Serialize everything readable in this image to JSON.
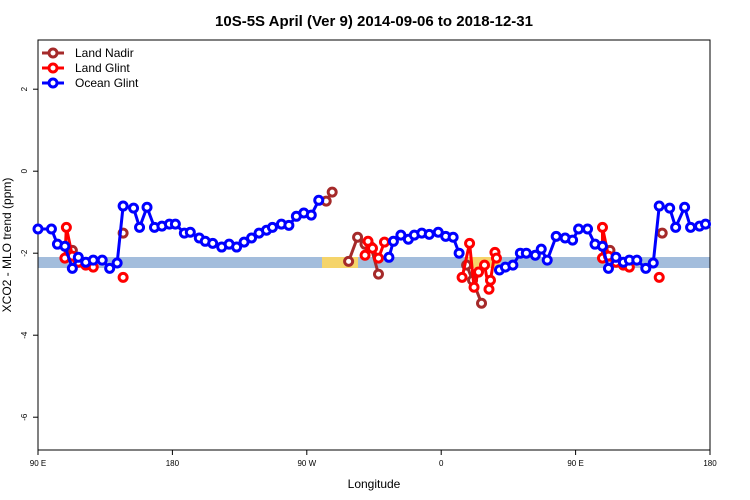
{
  "chart_data": {
    "type": "line",
    "title": "10S-5S April (Ver 9)   2014-09-06 to 2018-12-31",
    "xlabel": "Longitude",
    "ylabel": "XCO2 - MLO trend (ppm)",
    "xlim": [
      90,
      540
    ],
    "ylim": [
      -6.8,
      3.2
    ],
    "xticks": [
      {
        "value": 90,
        "label": "90 E"
      },
      180,
      {
        "value": 270,
        "label": "90 W"
      },
      {
        "value": 360,
        "label": "0"
      },
      {
        "value": 450,
        "label": "90 E"
      },
      {
        "value": 540,
        "label": "180"
      }
    ],
    "yticks": [
      -6,
      -4,
      -2,
      0,
      2
    ],
    "legend": "top-left",
    "series": [
      {
        "name": "Land Nadir",
        "color": "#a52a2a",
        "x": [
          113,
          130,
          147,
          200,
          283,
          287,
          295,
          298,
          304,
          309,
          313,
          318,
          350,
          377,
          381,
          387,
          420,
          473,
          490,
          508
        ],
        "values": [
          -1.93,
          null,
          -1.51,
          null,
          -0.73,
          -0.51,
          null,
          -2.2,
          -1.61,
          -1.78,
          -1.85,
          -2.51,
          null,
          -2.29,
          -2.66,
          -3.22,
          null,
          -1.93,
          null,
          -1.51
        ]
      },
      {
        "name": "Land Glint",
        "color": "#ff0000",
        "x": [
          108,
          109,
          113,
          117,
          122,
          127,
          140,
          147,
          200,
          309,
          311,
          314,
          318,
          322,
          350,
          374,
          379,
          382,
          385,
          389,
          392,
          393,
          396,
          397,
          420,
          468,
          468,
          472,
          477,
          482,
          486,
          495,
          506
        ],
        "values": [
          -2.12,
          -1.37,
          -2.07,
          -2.22,
          -2.29,
          -2.34,
          null,
          -2.59,
          null,
          -2.05,
          -1.71,
          -1.88,
          -2.12,
          -1.73,
          null,
          -2.59,
          -1.76,
          -2.83,
          -2.46,
          -2.29,
          -2.88,
          -2.66,
          -1.98,
          -2.12,
          null,
          -2.12,
          -1.37,
          -2.07,
          -2.22,
          -2.29,
          -2.34,
          null,
          -2.59
        ]
      },
      {
        "name": "Ocean Glint",
        "color": "#0000ff",
        "x": [
          90,
          99,
          103,
          108,
          113,
          117,
          122,
          127,
          133,
          138,
          143,
          147,
          154,
          158,
          163,
          168,
          173,
          178,
          182,
          188,
          192,
          198,
          202,
          207,
          213,
          218,
          223,
          228,
          233,
          238,
          243,
          247,
          253,
          258,
          263,
          268,
          273,
          278,
          300,
          325,
          328,
          333,
          338,
          342,
          347,
          352,
          358,
          363,
          368,
          372,
          385,
          399,
          403,
          408,
          413,
          417,
          423,
          427,
          431,
          437,
          443,
          448,
          452,
          458,
          463,
          468,
          472,
          477,
          482,
          486,
          491,
          497,
          502,
          506,
          513,
          517,
          523,
          527,
          533,
          537
        ],
        "values": [
          -1.41,
          -1.41,
          -1.78,
          -1.83,
          -2.37,
          -2.1,
          -2.22,
          -2.17,
          -2.17,
          -2.37,
          -2.24,
          -0.85,
          -0.9,
          -1.37,
          -0.88,
          -1.37,
          -1.34,
          -1.29,
          -1.29,
          -1.51,
          -1.49,
          -1.63,
          -1.71,
          -1.76,
          -1.85,
          -1.78,
          -1.85,
          -1.73,
          -1.63,
          -1.51,
          -1.44,
          -1.37,
          -1.29,
          -1.32,
          -1.1,
          -1.02,
          -1.07,
          -0.71,
          null,
          -2.1,
          -1.71,
          -1.56,
          -1.66,
          -1.56,
          -1.51,
          -1.54,
          -1.49,
          -1.59,
          -1.61,
          -2.0,
          null,
          -2.41,
          -2.34,
          -2.29,
          -2.0,
          -2.0,
          -2.05,
          -1.9,
          -2.17,
          -1.59,
          -1.63,
          -1.68,
          -1.41,
          -1.41,
          -1.78,
          -1.83,
          -2.37,
          -2.1,
          -2.22,
          -2.17,
          -2.17,
          -2.37,
          -2.24,
          -0.85,
          -0.9,
          -1.37,
          -0.88,
          -1.37,
          -1.34,
          -1.29
        ]
      }
    ]
  }
}
